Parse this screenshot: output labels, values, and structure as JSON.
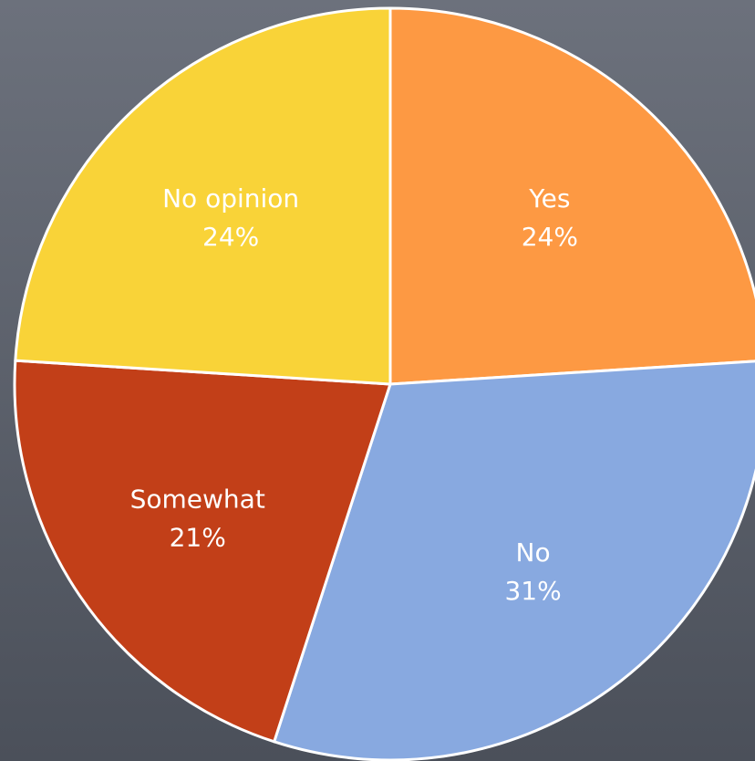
{
  "chart_data": {
    "type": "pie",
    "title": "",
    "slices": [
      {
        "label": "Yes",
        "value": 24,
        "percent_label": "24%",
        "color": "#fd9943"
      },
      {
        "label": "No",
        "value": 31,
        "percent_label": "31%",
        "color": "#88a9e0"
      },
      {
        "label": "Somewhat",
        "value": 21,
        "percent_label": "21%",
        "color": "#c23f18"
      },
      {
        "label": "No opinion",
        "value": 24,
        "percent_label": "24%",
        "color": "#f9d338"
      }
    ],
    "start_angle_deg": 0,
    "direction": "clockwise",
    "slice_border_color": "#ffffff"
  }
}
